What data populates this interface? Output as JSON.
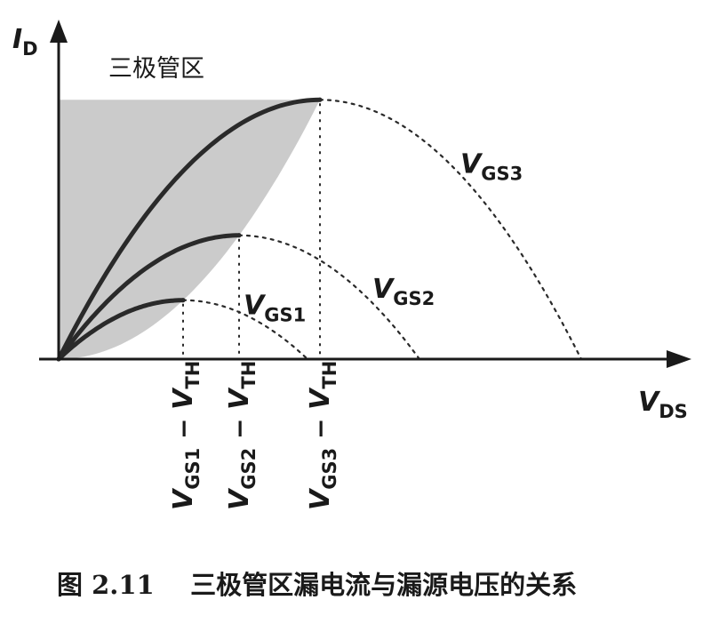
{
  "chart_data": {
    "type": "line",
    "title": "",
    "region_label": "三极管区",
    "caption": "图 2.11    三极管区漏电流与漏源电压的关系",
    "y_axis": {
      "main": "I",
      "sub": "D"
    },
    "x_axis": {
      "main": "V",
      "sub": "DS"
    },
    "grid": false,
    "x_ticks": [
      {
        "main": "V",
        "sub": "GS1",
        "minus": " − ",
        "main2": "V",
        "sub2": "TH",
        "x": 1
      },
      {
        "main": "V",
        "sub": "GS2",
        "minus": " − ",
        "main2": "V",
        "sub2": "TH",
        "x": 1.45
      },
      {
        "main": "V",
        "sub": "GS3",
        "minus": " − ",
        "main2": "V",
        "sub2": "TH",
        "x": 2.1
      }
    ],
    "series": [
      {
        "name_main": "V",
        "name_sub": "GS1",
        "peak_x": 1,
        "peak_y": 1
      },
      {
        "name_main": "V",
        "name_sub": "GS2",
        "peak_x": 1.45,
        "peak_y": 2.1
      },
      {
        "name_main": "V",
        "name_sub": "GS3",
        "peak_x": 2.1,
        "peak_y": 4.4
      }
    ],
    "colors": {
      "curve": "#2a2a2a",
      "triode_region": "#b9b9b9"
    }
  }
}
